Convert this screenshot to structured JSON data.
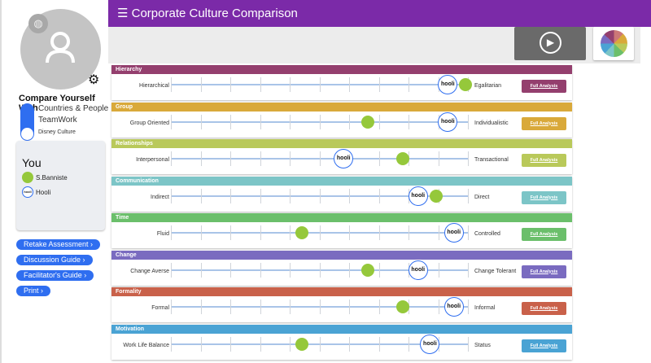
{
  "header": {
    "title": "Corporate Culture Comparison",
    "menu_icon": "hamburger-icon"
  },
  "sidebar": {
    "compare_title": "Compare Yourself With",
    "options": [
      "Countries & People",
      "TeamWork",
      "Disney Culture"
    ],
    "legend": {
      "title": "You",
      "items": [
        {
          "label": "S.Banniste",
          "marker": "green-dot"
        },
        {
          "label": "Hooli",
          "marker": "hooli-logo"
        }
      ]
    },
    "buttons": [
      "Retake Assessment",
      "Discussion Guide",
      "Facilitator's Guide",
      "Print"
    ],
    "logo_text": "hooli"
  },
  "button_label": "Full Analysis",
  "colors": {
    "you": "#95c83b",
    "hooli_ring": "#2f6ef0",
    "header": "#7b2aa8",
    "button": "#2f6ef0"
  },
  "dimensions": [
    {
      "name": "Hierarchy",
      "left": "Hierarchical",
      "right": "Egalitarian",
      "color": "#943f6e",
      "you": 0.99,
      "hooli": 0.93
    },
    {
      "name": "Group",
      "left": "Group Oriented",
      "right": "Individualistic",
      "color": "#d9a93a",
      "you": 0.66,
      "hooli": 0.93
    },
    {
      "name": "Relationships",
      "left": "Interpersonal",
      "right": "Transactional",
      "color": "#b9c95a",
      "you": 0.78,
      "hooli": 0.58
    },
    {
      "name": "Communication",
      "left": "Indirect",
      "right": "Direct",
      "color": "#7cc5c7",
      "you": 0.89,
      "hooli": 0.83
    },
    {
      "name": "Time",
      "left": "Fluid",
      "right": "Controlled",
      "color": "#6bbf6b",
      "you": 0.44,
      "hooli": 0.95
    },
    {
      "name": "Change",
      "left": "Change Averse",
      "right": "Change Tolerant",
      "color": "#7a6bc0",
      "you": 0.66,
      "hooli": 0.83
    },
    {
      "name": "Formality",
      "left": "Formal",
      "right": "Informal",
      "color": "#c9614a",
      "you": 0.78,
      "hooli": 0.95
    },
    {
      "name": "Motivation",
      "left": "Work Life Balance",
      "right": "Status",
      "color": "#4aa3d4",
      "you": 0.44,
      "hooli": 0.87
    }
  ]
}
